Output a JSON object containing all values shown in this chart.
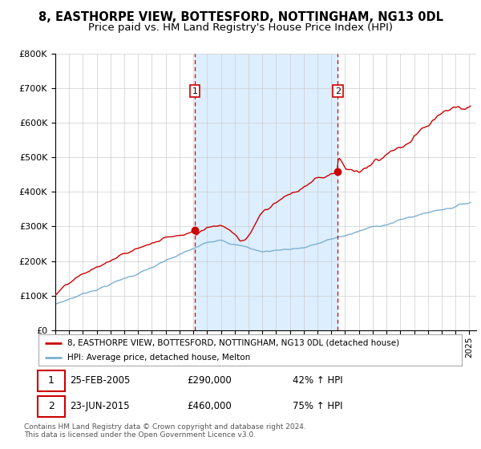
{
  "title": "8, EASTHORPE VIEW, BOTTESFORD, NOTTINGHAM, NG13 0DL",
  "subtitle": "Price paid vs. HM Land Registry's House Price Index (HPI)",
  "red_label": "8, EASTHORPE VIEW, BOTTESFORD, NOTTINGHAM, NG13 0DL (detached house)",
  "blue_label": "HPI: Average price, detached house, Melton",
  "annotation1_date": "25-FEB-2005",
  "annotation1_price": "£290,000",
  "annotation1_hpi": "42% ↑ HPI",
  "annotation2_date": "23-JUN-2015",
  "annotation2_price": "£460,000",
  "annotation2_hpi": "75% ↑ HPI",
  "footer": "Contains HM Land Registry data © Crown copyright and database right 2024.\nThis data is licensed under the Open Government Licence v3.0.",
  "red_color": "#cc0000",
  "blue_color": "#7ab0d4",
  "shade_color": "#ddeeff",
  "vline_color": "#cc0000",
  "grid_color": "#cccccc",
  "plot_bg": "#ffffff",
  "fig_bg": "#ffffff",
  "ylim": [
    0,
    800000
  ],
  "xlim_start": 1995,
  "xlim_end": 2025.5,
  "sale1_x": 2005.12,
  "sale1_y": 290000,
  "sale2_x": 2015.47,
  "sale2_y": 460000,
  "title_fontsize": 10.5,
  "subtitle_fontsize": 9.5,
  "tick_fontsize": 7.5,
  "ytick_fontsize": 8
}
